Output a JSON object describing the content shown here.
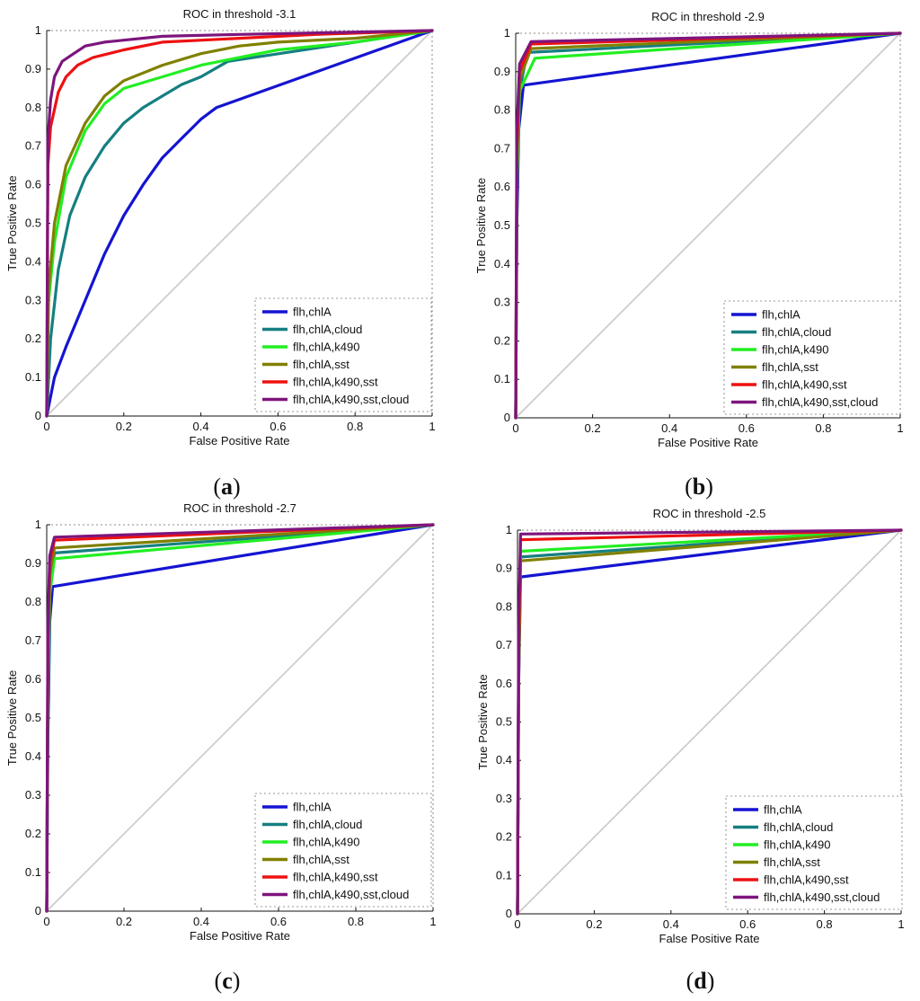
{
  "figure": {
    "axis_labels": {
      "x": "False Positive Rate",
      "y": "True Positive Rate"
    },
    "ticks": [
      "0",
      "0.1",
      "0.2",
      "0.3",
      "0.4",
      "0.5",
      "0.6",
      "0.7",
      "0.8",
      "0.9",
      "1"
    ],
    "xticks": [
      "0",
      "0.2",
      "0.4",
      "0.6",
      "0.8",
      "1"
    ],
    "colors": {
      "flh,chlA": "#1414d2",
      "flh,chlA,cloud": "#157f80",
      "flh,chlA,k490": "#22ee22",
      "flh,chlA,sst": "#808000",
      "flh,chlA,k490,sst": "#ee1111",
      "flh,chlA,k490,sst,cloud": "#7d157d",
      "diagonal": "#c8c8c8"
    }
  },
  "chart_data": [
    {
      "type": "line",
      "title": "ROC in threshold -3.1",
      "caption": "(a)",
      "caption_letter": "a",
      "xlabel": "False Positive Rate",
      "ylabel": "True Positive Rate",
      "xlim": [
        0,
        1
      ],
      "ylim": [
        0,
        1
      ],
      "legend": "bottom-right",
      "series": [
        {
          "name": "flh,chlA",
          "x": [
            0,
            0.02,
            0.05,
            0.1,
            0.15,
            0.2,
            0.25,
            0.3,
            0.35,
            0.4,
            0.44,
            1
          ],
          "y": [
            0,
            0.1,
            0.18,
            0.3,
            0.42,
            0.52,
            0.6,
            0.67,
            0.72,
            0.77,
            0.8,
            1
          ]
        },
        {
          "name": "flh,chlA,cloud",
          "x": [
            0,
            0.01,
            0.03,
            0.06,
            0.1,
            0.15,
            0.2,
            0.25,
            0.3,
            0.35,
            0.4,
            0.47,
            1
          ],
          "y": [
            0,
            0.2,
            0.38,
            0.52,
            0.62,
            0.7,
            0.76,
            0.8,
            0.83,
            0.86,
            0.88,
            0.92,
            1
          ]
        },
        {
          "name": "flh,chlA,k490",
          "x": [
            0,
            0.005,
            0.02,
            0.05,
            0.1,
            0.15,
            0.2,
            0.3,
            0.4,
            0.5,
            0.6,
            0.8,
            1
          ],
          "y": [
            0,
            0.3,
            0.45,
            0.62,
            0.74,
            0.81,
            0.85,
            0.88,
            0.91,
            0.93,
            0.95,
            0.97,
            1
          ]
        },
        {
          "name": "flh,chlA,sst",
          "x": [
            0,
            0.005,
            0.02,
            0.05,
            0.1,
            0.15,
            0.2,
            0.3,
            0.4,
            0.5,
            0.6,
            0.8,
            1
          ],
          "y": [
            0,
            0.33,
            0.5,
            0.65,
            0.76,
            0.83,
            0.87,
            0.91,
            0.94,
            0.96,
            0.97,
            0.98,
            1
          ]
        },
        {
          "name": "flh,chlA,k490,sst",
          "x": [
            0,
            0.003,
            0.01,
            0.03,
            0.05,
            0.08,
            0.12,
            0.2,
            0.3,
            0.5,
            0.7,
            1
          ],
          "y": [
            0,
            0.65,
            0.75,
            0.84,
            0.88,
            0.91,
            0.93,
            0.95,
            0.97,
            0.98,
            0.99,
            1
          ]
        },
        {
          "name": "flh,chlA,k490,sst,cloud",
          "x": [
            0,
            0.003,
            0.01,
            0.02,
            0.04,
            0.07,
            0.1,
            0.15,
            0.2,
            0.3,
            0.5,
            1
          ],
          "y": [
            0,
            0.72,
            0.82,
            0.88,
            0.92,
            0.94,
            0.96,
            0.97,
            0.975,
            0.985,
            0.99,
            1
          ]
        }
      ]
    },
    {
      "type": "line",
      "title": "ROC in threshold -2.9",
      "caption": "(b)",
      "caption_letter": "b",
      "xlabel": "False Positive Rate",
      "ylabel": "True Positive Rate",
      "xlim": [
        0,
        1
      ],
      "ylim": [
        0,
        1
      ],
      "legend": "bottom-right",
      "series": [
        {
          "name": "flh,chlA",
          "x": [
            0,
            0.003,
            0.008,
            0.02,
            1
          ],
          "y": [
            0,
            0.5,
            0.75,
            0.865,
            1
          ]
        },
        {
          "name": "flh,chlA,cloud",
          "x": [
            0,
            0.003,
            0.01,
            0.03,
            1
          ],
          "y": [
            0,
            0.6,
            0.85,
            0.95,
            1
          ]
        },
        {
          "name": "flh,chlA,k490",
          "x": [
            0,
            0.003,
            0.01,
            0.05,
            1
          ],
          "y": [
            0,
            0.6,
            0.85,
            0.935,
            1
          ]
        },
        {
          "name": "flh,chlA,sst",
          "x": [
            0,
            0.003,
            0.01,
            0.04,
            1
          ],
          "y": [
            0,
            0.65,
            0.88,
            0.96,
            1
          ]
        },
        {
          "name": "flh,chlA,k490,sst",
          "x": [
            0,
            0.003,
            0.01,
            0.04,
            1
          ],
          "y": [
            0,
            0.7,
            0.9,
            0.972,
            1
          ]
        },
        {
          "name": "flh,chlA,k490,sst,cloud",
          "x": [
            0,
            0.003,
            0.01,
            0.04,
            1
          ],
          "y": [
            0,
            0.75,
            0.92,
            0.978,
            1
          ]
        }
      ]
    },
    {
      "type": "line",
      "title": "ROC in threshold -2.7",
      "caption": "(c)",
      "caption_letter": "c",
      "xlabel": "False Positive Rate",
      "ylabel": "True Positive Rate",
      "xlim": [
        0,
        1
      ],
      "ylim": [
        0,
        1
      ],
      "legend": "bottom-right",
      "series": [
        {
          "name": "flh,chlA",
          "x": [
            0,
            0.003,
            0.008,
            0.015,
            1
          ],
          "y": [
            0,
            0.45,
            0.75,
            0.84,
            1
          ]
        },
        {
          "name": "flh,chlA,cloud",
          "x": [
            0,
            0.003,
            0.008,
            0.02,
            1
          ],
          "y": [
            0,
            0.6,
            0.85,
            0.927,
            1
          ]
        },
        {
          "name": "flh,chlA,k490",
          "x": [
            0,
            0.003,
            0.008,
            0.02,
            1
          ],
          "y": [
            0,
            0.55,
            0.82,
            0.912,
            1
          ]
        },
        {
          "name": "flh,chlA,sst",
          "x": [
            0,
            0.003,
            0.008,
            0.02,
            1
          ],
          "y": [
            0,
            0.62,
            0.87,
            0.94,
            1
          ]
        },
        {
          "name": "flh,chlA,k490,sst",
          "x": [
            0,
            0.003,
            0.008,
            0.02,
            1
          ],
          "y": [
            0,
            0.7,
            0.9,
            0.96,
            1
          ]
        },
        {
          "name": "flh,chlA,k490,sst,cloud",
          "x": [
            0,
            0.003,
            0.008,
            0.02,
            1
          ],
          "y": [
            0,
            0.75,
            0.92,
            0.968,
            1
          ]
        }
      ]
    },
    {
      "type": "line",
      "title": "ROC in threshold -2.5",
      "caption": "(d)",
      "caption_letter": "d",
      "xlabel": "False Positive Rate",
      "ylabel": "True Positive Rate",
      "xlim": [
        0,
        1
      ],
      "ylim": [
        0,
        1
      ],
      "legend": "bottom-right",
      "series": [
        {
          "name": "flh,chlA",
          "x": [
            0,
            0.003,
            0.008,
            1
          ],
          "y": [
            0,
            0.6,
            0.878,
            1
          ]
        },
        {
          "name": "flh,chlA,cloud",
          "x": [
            0,
            0.003,
            0.008,
            1
          ],
          "y": [
            0,
            0.65,
            0.93,
            1
          ]
        },
        {
          "name": "flh,chlA,k490",
          "x": [
            0,
            0.003,
            0.008,
            1
          ],
          "y": [
            0,
            0.65,
            0.945,
            1
          ]
        },
        {
          "name": "flh,chlA,sst",
          "x": [
            0,
            0.003,
            0.008,
            1
          ],
          "y": [
            0,
            0.62,
            0.92,
            1
          ]
        },
        {
          "name": "flh,chlA,k490,sst",
          "x": [
            0,
            0.003,
            0.008,
            1
          ],
          "y": [
            0,
            0.7,
            0.975,
            1
          ]
        },
        {
          "name": "flh,chlA,k490,sst,cloud",
          "x": [
            0,
            0.003,
            0.008,
            1
          ],
          "y": [
            0,
            0.75,
            0.99,
            1
          ]
        }
      ]
    }
  ]
}
